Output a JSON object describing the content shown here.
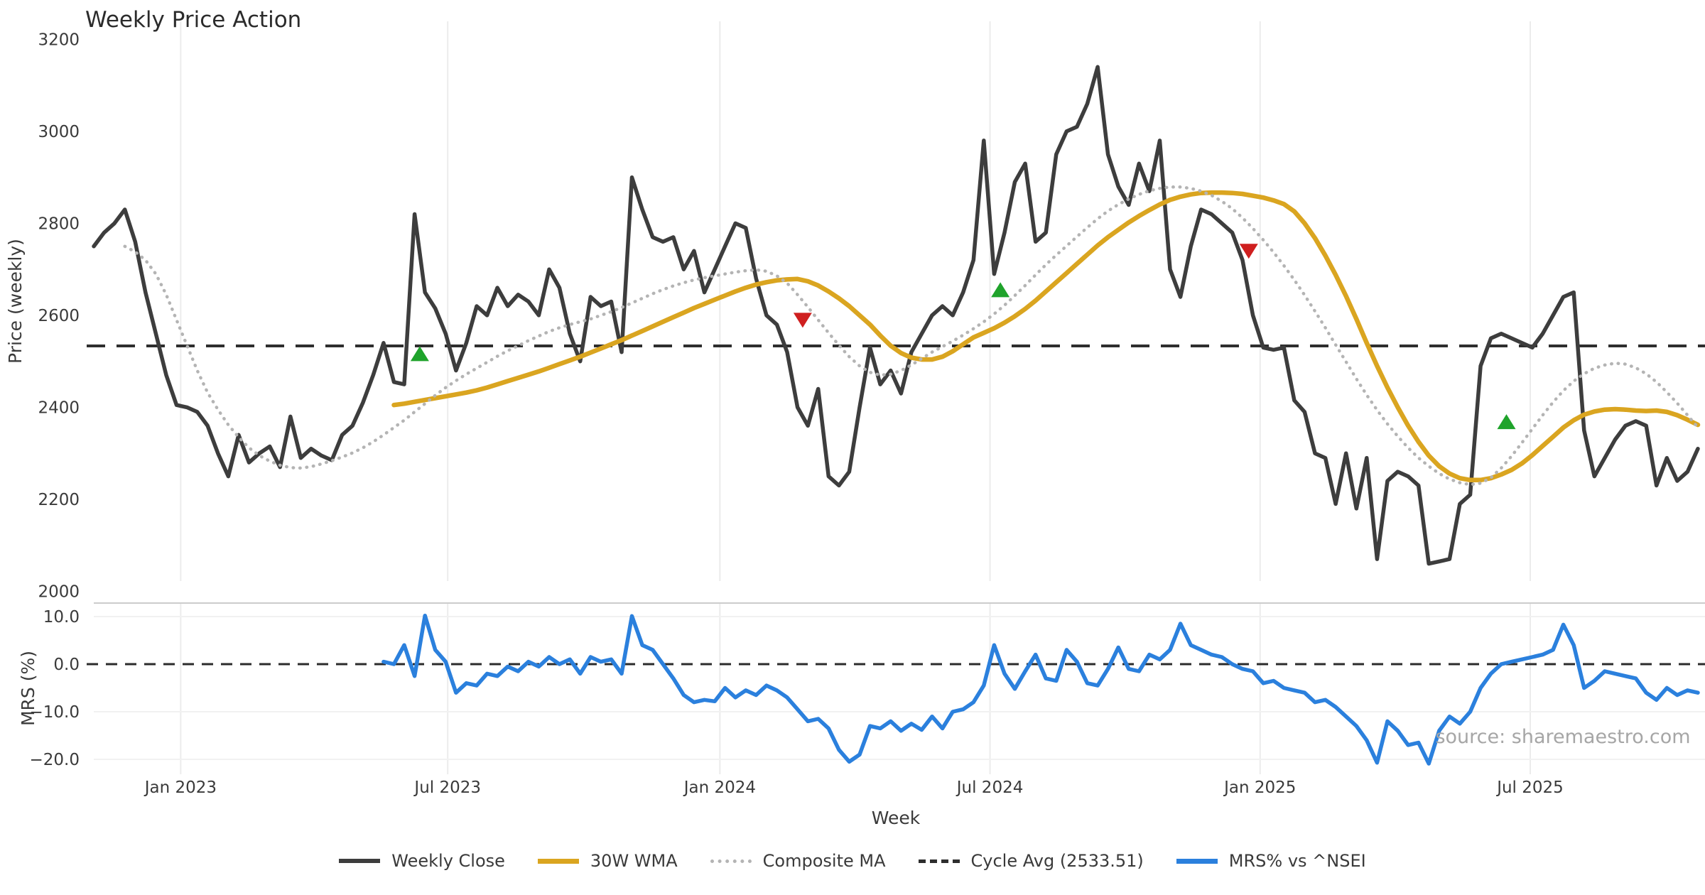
{
  "page": {
    "title": "Weekly Price Action",
    "watermark": "source: sharemaestro.com"
  },
  "colors": {
    "weekly_close": "#3d3d3d",
    "wma30": "#daa520",
    "composite_ma": "#b4b4b4",
    "cycle_avg": "#2e2e2e",
    "mrs": "#2b80dd",
    "buy_marker": "#1fa32b",
    "sell_marker": "#cf1f1f",
    "grid": "#ececec",
    "text": "#3a3a3a"
  },
  "legend": {
    "items": [
      {
        "label": "Weekly Close"
      },
      {
        "label": "30W WMA"
      },
      {
        "label": "Composite MA"
      },
      {
        "label": "Cycle Avg (2533.51)"
      },
      {
        "label": "MRS% vs ^NSEI"
      }
    ]
  },
  "chart_data": {
    "type": "line",
    "title": "Weekly Price Action",
    "xlabel": "Week",
    "weeks_total": 156,
    "x_ticks": [
      {
        "label": "Jan 2023",
        "week": 8.4
      },
      {
        "label": "Jul 2023",
        "week": 34.2
      },
      {
        "label": "Jan 2024",
        "week": 60.5
      },
      {
        "label": "Jul 2024",
        "week": 86.6
      },
      {
        "label": "Jan 2025",
        "week": 112.7
      },
      {
        "label": "Jul 2025",
        "week": 138.8
      }
    ],
    "price_panel": {
      "ylabel": "Price (weekly)",
      "ylim": [
        2000,
        3200
      ],
      "y_ticks": [
        3200,
        3000,
        2800,
        2600,
        2400,
        2200,
        2000
      ]
    },
    "mrs_panel": {
      "ylabel": "MRS (%)",
      "ylim": [
        -22.5,
        12.5
      ],
      "y_ticks": [
        {
          "label": "10.0",
          "value": 10
        },
        {
          "label": "0.0",
          "value": 0
        },
        {
          "label": "−10.0",
          "value": -10
        },
        {
          "label": "−20.0",
          "value": -20
        }
      ],
      "zero_line": 0
    },
    "cycle_avg": 2533.51,
    "markers": {
      "buy": [
        {
          "week": 31.5,
          "price": 2516
        },
        {
          "week": 87.6,
          "price": 2655
        },
        {
          "week": 136.5,
          "price": 2368
        }
      ],
      "sell": [
        {
          "week": 68.5,
          "price": 2590
        },
        {
          "week": 111.6,
          "price": 2740
        }
      ]
    },
    "series": [
      {
        "id": "weekly_close",
        "name": "Weekly Close",
        "panel": "price",
        "style": "solid",
        "start_week": 0,
        "values": [
          2750,
          2780,
          2800,
          2830,
          2760,
          2650,
          2560,
          2470,
          2405,
          2400,
          2390,
          2360,
          2300,
          2250,
          2340,
          2280,
          2300,
          2315,
          2270,
          2380,
          2290,
          2310,
          2295,
          2285,
          2340,
          2360,
          2410,
          2470,
          2540,
          2455,
          2450,
          2820,
          2650,
          2615,
          2560,
          2480,
          2540,
          2620,
          2600,
          2660,
          2620,
          2645,
          2630,
          2600,
          2700,
          2660,
          2560,
          2500,
          2640,
          2620,
          2630,
          2520,
          2900,
          2830,
          2770,
          2760,
          2770,
          2700,
          2740,
          2650,
          2700,
          2750,
          2800,
          2790,
          2680,
          2600,
          2580,
          2520,
          2400,
          2360,
          2440,
          2250,
          2230,
          2260,
          2400,
          2530,
          2450,
          2480,
          2430,
          2520,
          2560,
          2600,
          2620,
          2600,
          2650,
          2720,
          2980,
          2690,
          2780,
          2890,
          2930,
          2760,
          2780,
          2950,
          3000,
          3010,
          3060,
          3140,
          2950,
          2880,
          2840,
          2930,
          2870,
          2980,
          2700,
          2640,
          2750,
          2830,
          2820,
          2800,
          2780,
          2720,
          2600,
          2530,
          2525,
          2530,
          2415,
          2390,
          2300,
          2290,
          2190,
          2300,
          2180,
          2290,
          2070,
          2240,
          2260,
          2250,
          2230,
          2060,
          2065,
          2070,
          2190,
          2210,
          2490,
          2550,
          2560,
          2550,
          2540,
          2530,
          2560,
          2600,
          2640,
          2650,
          2350,
          2250,
          2290,
          2330,
          2360,
          2370,
          2360,
          2230,
          2290,
          2240,
          2260,
          2310
        ]
      },
      {
        "id": "wma30",
        "name": "30W WMA",
        "panel": "price",
        "style": "solid",
        "start_week": 29,
        "values": [
          2405,
          2408,
          2412,
          2416,
          2420,
          2424,
          2428,
          2432,
          2437,
          2443,
          2450,
          2457,
          2464,
          2471,
          2478,
          2486,
          2494,
          2502,
          2510,
          2519,
          2528,
          2537,
          2546,
          2556,
          2566,
          2576,
          2586,
          2596,
          2606,
          2616,
          2625,
          2634,
          2643,
          2652,
          2660,
          2667,
          2672,
          2676,
          2678,
          2679,
          2674,
          2665,
          2652,
          2637,
          2620,
          2600,
          2580,
          2556,
          2534,
          2518,
          2508,
          2504,
          2504,
          2510,
          2522,
          2537,
          2552,
          2562,
          2572,
          2584,
          2598,
          2614,
          2632,
          2652,
          2672,
          2692,
          2712,
          2732,
          2752,
          2770,
          2786,
          2802,
          2816,
          2829,
          2841,
          2851,
          2858,
          2863,
          2866,
          2867,
          2867,
          2866,
          2864,
          2860,
          2856,
          2850,
          2842,
          2826,
          2800,
          2768,
          2730,
          2688,
          2642,
          2592,
          2540,
          2490,
          2443,
          2400,
          2360,
          2325,
          2295,
          2272,
          2256,
          2246,
          2242,
          2242,
          2246,
          2254,
          2264,
          2278,
          2296,
          2316,
          2336,
          2356,
          2372,
          2384,
          2391,
          2395,
          2396,
          2395,
          2393,
          2392,
          2393,
          2390,
          2383,
          2373,
          2362
        ]
      },
      {
        "id": "composite_ma",
        "name": "Composite MA",
        "panel": "price",
        "style": "dotted",
        "start_week": 3,
        "values": [
          2750,
          2738,
          2720,
          2690,
          2645,
          2590,
          2535,
          2480,
          2432,
          2395,
          2362,
          2335,
          2312,
          2295,
          2283,
          2274,
          2269,
          2268,
          2271,
          2277,
          2284,
          2292,
          2301,
          2312,
          2325,
          2340,
          2356,
          2372,
          2390,
          2408,
          2426,
          2443,
          2458,
          2472,
          2485,
          2498,
          2511,
          2523,
          2534,
          2545,
          2555,
          2565,
          2573,
          2580,
          2586,
          2592,
          2600,
          2608,
          2617,
          2627,
          2637,
          2647,
          2656,
          2664,
          2671,
          2677,
          2682,
          2686,
          2690,
          2694,
          2697,
          2699,
          2696,
          2686,
          2670,
          2645,
          2618,
          2590,
          2562,
          2535,
          2510,
          2490,
          2476,
          2470,
          2472,
          2480,
          2492,
          2506,
          2520,
          2532,
          2544,
          2557,
          2571,
          2586,
          2603,
          2622,
          2643,
          2665,
          2688,
          2710,
          2731,
          2751,
          2771,
          2791,
          2810,
          2827,
          2841,
          2853,
          2863,
          2871,
          2876,
          2879,
          2879,
          2876,
          2870,
          2861,
          2848,
          2832,
          2812,
          2789,
          2764,
          2737,
          2708,
          2677,
          2644,
          2609,
          2573,
          2536,
          2499,
          2462,
          2427,
          2394,
          2364,
          2337,
          2312,
          2290,
          2272,
          2256,
          2244,
          2236,
          2232,
          2235,
          2247,
          2268,
          2294,
          2323,
          2353,
          2383,
          2411,
          2436,
          2457,
          2473,
          2485,
          2492,
          2496,
          2494,
          2486,
          2473,
          2455,
          2433,
          2409,
          2383,
          2356
        ]
      },
      {
        "id": "mrs",
        "name": "MRS% vs ^NSEI",
        "panel": "mrs",
        "style": "solid",
        "start_week": 28,
        "values": [
          0.5,
          0.0,
          4.0,
          -2.5,
          10.2,
          3.0,
          0.5,
          -6.0,
          -4.0,
          -4.5,
          -2.0,
          -2.5,
          -0.5,
          -1.5,
          0.5,
          -0.5,
          1.5,
          0.0,
          1.0,
          -2.0,
          1.5,
          0.5,
          1.0,
          -2.0,
          10.1,
          4.0,
          3.0,
          0.0,
          -3.0,
          -6.5,
          -8.0,
          -7.5,
          -7.8,
          -5.0,
          -7.0,
          -5.5,
          -6.5,
          -4.5,
          -5.5,
          -7.0,
          -9.5,
          -12.0,
          -11.5,
          -13.5,
          -18.0,
          -20.5,
          -19.0,
          -13.0,
          -13.5,
          -12.0,
          -14.0,
          -12.5,
          -13.8,
          -11.0,
          -13.5,
          -10.0,
          -9.5,
          -8.0,
          -4.5,
          4.0,
          -2.0,
          -5.2,
          -1.5,
          2.0,
          -3.0,
          -3.5,
          3.0,
          0.5,
          -4.0,
          -4.5,
          -1.0,
          3.5,
          -1.0,
          -1.5,
          2.0,
          1.0,
          3.0,
          8.5,
          4.0,
          3.0,
          2.0,
          1.5,
          0.0,
          -1.0,
          -1.5,
          -4.0,
          -3.5,
          -5.0,
          -5.5,
          -6.0,
          -8.0,
          -7.5,
          -9.0,
          -11.0,
          -13.0,
          -16.0,
          -20.7,
          -12.0,
          -14.0,
          -17.0,
          -16.5,
          -20.9,
          -14.0,
          -11.0,
          -12.5,
          -10.0,
          -5.0,
          -2.0,
          0.0,
          0.5,
          1.0,
          1.5,
          2.0,
          3.0,
          8.3,
          4.0,
          -5.0,
          -3.5,
          -1.5,
          -2.0,
          -2.5,
          -3.0,
          -6.0,
          -7.5,
          -5.0,
          -6.5,
          -5.5,
          -6.0
        ]
      }
    ]
  }
}
